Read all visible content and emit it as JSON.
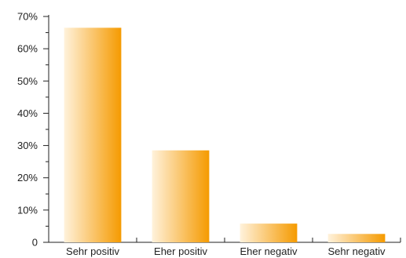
{
  "chart_data": {
    "type": "bar",
    "categories": [
      "Sehr positiv",
      "Eher positiv",
      "Eher negativ",
      "Sehr negativ"
    ],
    "values": [
      66.5,
      28.5,
      5.8,
      2.6
    ],
    "ylim": [
      0,
      70
    ],
    "y_ticks": [
      0,
      10,
      20,
      30,
      40,
      50,
      60,
      70
    ],
    "y_tick_labels": [
      "0",
      "10%",
      "20%",
      "30%",
      "40%",
      "50%",
      "60%",
      "70%"
    ],
    "y_unit": "%",
    "grid": false,
    "legend": "none",
    "colors": {
      "bar_light": "#fff2dc",
      "bar_dark": "#f59a00",
      "axis": "#222222",
      "text": "#222222"
    }
  }
}
